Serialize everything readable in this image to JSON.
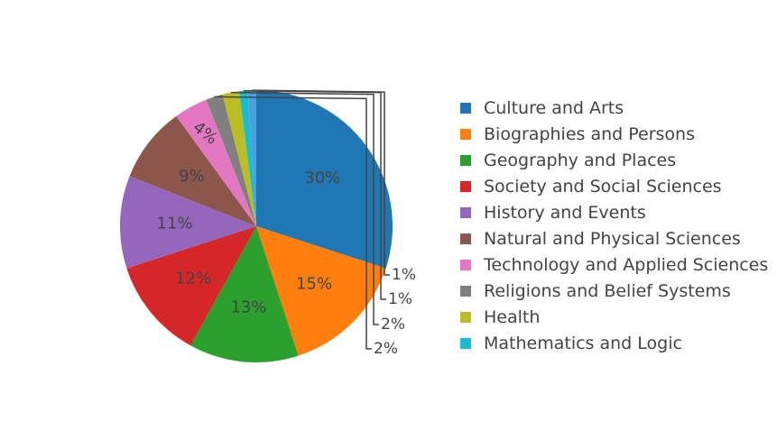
{
  "chart_data": {
    "type": "pie",
    "title": "",
    "legend_position": "right",
    "slices": [
      {
        "label": "Culture and Arts",
        "value": 30,
        "text": "30%",
        "color": "#1f77b4"
      },
      {
        "label": "Biographies and Persons",
        "value": 15,
        "text": "15%",
        "color": "#ff7f0e"
      },
      {
        "label": "Geography and Places",
        "value": 13,
        "text": "13%",
        "color": "#2ca02c"
      },
      {
        "label": "Society and Social Sciences",
        "value": 12,
        "text": "12%",
        "color": "#d62728"
      },
      {
        "label": "History and Events",
        "value": 11,
        "text": "11%",
        "color": "#9467bd"
      },
      {
        "label": "Natural and Physical Sciences",
        "value": 9,
        "text": "9%",
        "color": "#8c564b"
      },
      {
        "label": "Technology and Applied Sciences",
        "value": 4,
        "text": "4%",
        "color": "#e377c2"
      },
      {
        "label": "Religions and Belief Systems",
        "value": 2,
        "text": "2%",
        "color": "#7f7f7f"
      },
      {
        "label": "Health",
        "value": 2,
        "text": "2%",
        "color": "#bcbd22"
      },
      {
        "label": "Mathematics and Logic",
        "value": 1,
        "text": "1%",
        "color": "#17becf"
      },
      {
        "label": "",
        "value": 1,
        "text": "1%",
        "color": "#4c9fe0"
      }
    ]
  }
}
